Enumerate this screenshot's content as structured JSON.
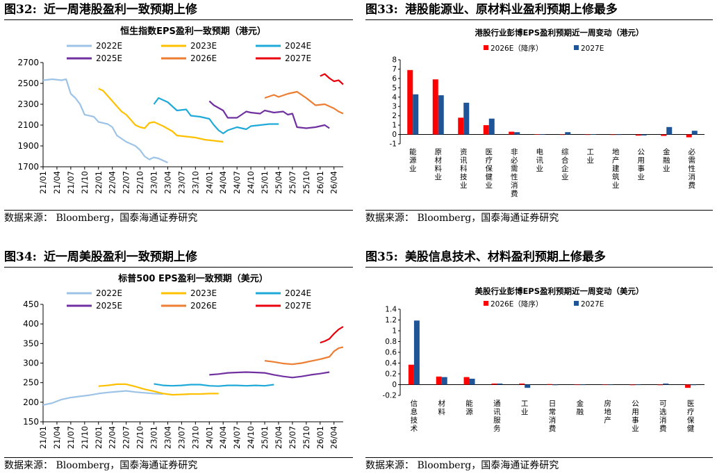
{
  "panels": [
    {
      "fig_num": "图32:",
      "fig_title": "近一周港股盈利一致预期上修",
      "source": "数据来源：  Bloomberg，国泰海通证券研究"
    },
    {
      "fig_num": "图33:",
      "fig_title": "港股能源业、原材料业盈利预期上修最多",
      "source": "数据来源：  Bloomberg，国泰海通证券研究"
    },
    {
      "fig_num": "图34:",
      "fig_title": "近一周美股盈利一致预期上修",
      "source": "数据来源：  Bloomberg，国泰海通证券研究"
    },
    {
      "fig_num": "图35:",
      "fig_title": "美股信息技术、材料盈利预期上修最多",
      "source": "数据来源：  Bloomberg，国泰海通证券研究"
    }
  ],
  "colors": {
    "2022E": "#9dc3e6",
    "2023E": "#ffc000",
    "2024E": "#1fa9d9",
    "2025E": "#7030a0",
    "2026E": "#ed7d31",
    "2027E": "#e8000d",
    "bar_2026E": "#ff0000",
    "bar_2027E": "#1f5597"
  },
  "chart_data": [
    {
      "type": "line",
      "title": "恒生指数EPS盈利一致预期（港元）",
      "ylim": [
        1700,
        2700
      ],
      "yticks": [
        "1700",
        "1900",
        "2100",
        "2300",
        "2500",
        "2700"
      ],
      "xticks": [
        "21/01",
        "21/04",
        "21/07",
        "21/10",
        "22/01",
        "22/04",
        "22/07",
        "22/10",
        "23/01",
        "23/04",
        "23/07",
        "23/10",
        "24/01",
        "24/04",
        "24/07",
        "24/10",
        "25/01",
        "25/04",
        "25/07",
        "25/10",
        "26/01",
        "26/04"
      ],
      "x_range": [
        "2021-01",
        "2026-06"
      ],
      "legend": [
        "2022E",
        "2023E",
        "2024E",
        "2025E",
        "2026E",
        "2027E"
      ],
      "series": [
        {
          "name": "2022E",
          "color_key": "2022E",
          "points": [
            [
              "2021-01",
              2530
            ],
            [
              "2021-03",
              2540
            ],
            [
              "2021-05",
              2530
            ],
            [
              "2021-06",
              2540
            ],
            [
              "2021-07",
              2400
            ],
            [
              "2021-08",
              2360
            ],
            [
              "2021-09",
              2300
            ],
            [
              "2021-10",
              2200
            ],
            [
              "2021-12",
              2180
            ],
            [
              "2022-01",
              2130
            ],
            [
              "2022-03",
              2110
            ],
            [
              "2022-04",
              2080
            ],
            [
              "2022-05",
              2000
            ],
            [
              "2022-07",
              1940
            ],
            [
              "2022-09",
              1900
            ],
            [
              "2022-10",
              1860
            ],
            [
              "2022-11",
              1800
            ],
            [
              "2022-12",
              1770
            ],
            [
              "2023-01",
              1790
            ],
            [
              "2023-02",
              1780
            ],
            [
              "2023-03",
              1760
            ],
            [
              "2023-04",
              1740
            ]
          ]
        },
        {
          "name": "2023E",
          "color_key": "2023E",
          "points": [
            [
              "2022-01",
              2450
            ],
            [
              "2022-02",
              2430
            ],
            [
              "2022-03",
              2380
            ],
            [
              "2022-04",
              2330
            ],
            [
              "2022-05",
              2280
            ],
            [
              "2022-06",
              2230
            ],
            [
              "2022-07",
              2200
            ],
            [
              "2022-08",
              2150
            ],
            [
              "2022-09",
              2100
            ],
            [
              "2022-10",
              2080
            ],
            [
              "2022-11",
              2070
            ],
            [
              "2022-12",
              2120
            ],
            [
              "2023-01",
              2130
            ],
            [
              "2023-03",
              2090
            ],
            [
              "2023-05",
              2040
            ],
            [
              "2023-06",
              2000
            ],
            [
              "2023-08",
              1990
            ],
            [
              "2023-10",
              1980
            ],
            [
              "2023-12",
              1960
            ],
            [
              "2024-02",
              1950
            ],
            [
              "2024-04",
              1940
            ]
          ]
        },
        {
          "name": "2024E",
          "color_key": "2024E",
          "points": [
            [
              "2023-01",
              2300
            ],
            [
              "2023-02",
              2360
            ],
            [
              "2023-04",
              2320
            ],
            [
              "2023-06",
              2240
            ],
            [
              "2023-08",
              2250
            ],
            [
              "2023-09",
              2190
            ],
            [
              "2023-11",
              2180
            ],
            [
              "2024-01",
              2160
            ],
            [
              "2024-02",
              2100
            ],
            [
              "2024-03",
              2050
            ],
            [
              "2024-04",
              2020
            ],
            [
              "2024-05",
              2050
            ],
            [
              "2024-07",
              2080
            ],
            [
              "2024-09",
              2060
            ],
            [
              "2024-10",
              2090
            ],
            [
              "2024-12",
              2100
            ],
            [
              "2025-02",
              2110
            ],
            [
              "2025-04",
              2110
            ]
          ]
        },
        {
          "name": "2025E",
          "color_key": "2025E",
          "points": [
            [
              "2024-01",
              2330
            ],
            [
              "2024-02",
              2290
            ],
            [
              "2024-04",
              2240
            ],
            [
              "2024-05",
              2170
            ],
            [
              "2024-07",
              2170
            ],
            [
              "2024-09",
              2230
            ],
            [
              "2024-10",
              2220
            ],
            [
              "2024-12",
              2210
            ],
            [
              "2025-01",
              2240
            ],
            [
              "2025-03",
              2220
            ],
            [
              "2025-05",
              2230
            ],
            [
              "2025-06",
              2200
            ],
            [
              "2025-07",
              2210
            ],
            [
              "2025-08",
              2080
            ],
            [
              "2025-10",
              2070
            ],
            [
              "2025-12",
              2080
            ],
            [
              "2026-02",
              2100
            ],
            [
              "2026-03",
              2070
            ]
          ]
        },
        {
          "name": "2026E",
          "color_key": "2026E",
          "points": [
            [
              "2025-01",
              2360
            ],
            [
              "2025-03",
              2390
            ],
            [
              "2025-04",
              2370
            ],
            [
              "2025-06",
              2400
            ],
            [
              "2025-08",
              2420
            ],
            [
              "2025-10",
              2360
            ],
            [
              "2025-12",
              2290
            ],
            [
              "2026-02",
              2300
            ],
            [
              "2026-04",
              2260
            ],
            [
              "2026-05",
              2230
            ],
            [
              "2026-06",
              2210
            ]
          ]
        },
        {
          "name": "2027E",
          "color_key": "2027E",
          "points": [
            [
              "2026-01",
              2570
            ],
            [
              "2026-02",
              2590
            ],
            [
              "2026-03",
              2550
            ],
            [
              "2026-04",
              2520
            ],
            [
              "2026-05",
              2530
            ],
            [
              "2026-06",
              2490
            ]
          ]
        }
      ]
    },
    {
      "type": "bar",
      "title": "港股行业彭博EPS盈利预期近一周变动（港元）",
      "ylim": [
        -1,
        8
      ],
      "yticks": [
        "-1",
        "0",
        "1",
        "2",
        "3",
        "4",
        "5",
        "6",
        "7",
        "8"
      ],
      "categories": [
        "能源业",
        "原材料业",
        "资讯科技业",
        "医疗保健业",
        "非必需性消费",
        "电讯业",
        "综合企业",
        "工业",
        "地产建筑业",
        "公用事业",
        "金融业",
        "必需性消费"
      ],
      "legend": [
        "2026E（降序）",
        "2027E"
      ],
      "series": [
        {
          "name": "2026E（降序）",
          "color_key": "bar_2026E",
          "values": [
            6.9,
            5.9,
            1.8,
            1.0,
            0.3,
            0.02,
            0.0,
            0.0,
            -0.05,
            -0.12,
            -0.15,
            -0.3
          ]
        },
        {
          "name": "2027E",
          "color_key": "bar_2027E",
          "values": [
            4.3,
            4.2,
            3.4,
            1.7,
            0.25,
            0.03,
            0.25,
            0.02,
            0.0,
            -0.1,
            0.8,
            0.4
          ]
        }
      ]
    },
    {
      "type": "line",
      "title": "标普500 EPS盈利一致预期（美元）",
      "ylim": [
        150,
        450
      ],
      "yticks": [
        "150",
        "200",
        "250",
        "300",
        "350",
        "400",
        "450"
      ],
      "xticks": [
        "21/01",
        "21/04",
        "21/07",
        "21/10",
        "22/01",
        "22/04",
        "22/07",
        "22/10",
        "23/01",
        "23/04",
        "23/07",
        "23/10",
        "24/01",
        "24/04",
        "24/07",
        "24/10",
        "25/01",
        "25/04",
        "25/07",
        "25/10",
        "26/01",
        "26/04"
      ],
      "x_range": [
        "2021-01",
        "2026-06"
      ],
      "legend": [
        "2022E",
        "2023E",
        "2024E",
        "2025E",
        "2026E",
        "2027E"
      ],
      "series": [
        {
          "name": "2022E",
          "color_key": "2022E",
          "points": [
            [
              "2021-01",
              193
            ],
            [
              "2021-03",
              198
            ],
            [
              "2021-05",
              207
            ],
            [
              "2021-07",
              212
            ],
            [
              "2021-09",
              215
            ],
            [
              "2021-11",
              218
            ],
            [
              "2022-01",
              222
            ],
            [
              "2022-03",
              225
            ],
            [
              "2022-05",
              227
            ],
            [
              "2022-07",
              229
            ],
            [
              "2022-09",
              226
            ],
            [
              "2022-11",
              224
            ],
            [
              "2023-01",
              222
            ],
            [
              "2023-03",
              221
            ]
          ]
        },
        {
          "name": "2023E",
          "color_key": "2023E",
          "points": [
            [
              "2022-01",
              241
            ],
            [
              "2022-03",
              243
            ],
            [
              "2022-05",
              246
            ],
            [
              "2022-07",
              246
            ],
            [
              "2022-09",
              240
            ],
            [
              "2022-11",
              233
            ],
            [
              "2023-01",
              228
            ],
            [
              "2023-03",
              222
            ],
            [
              "2023-05",
              219
            ],
            [
              "2023-07",
              220
            ],
            [
              "2023-09",
              221
            ],
            [
              "2023-11",
              221
            ],
            [
              "2024-01",
              222
            ],
            [
              "2024-03",
              222
            ]
          ]
        },
        {
          "name": "2024E",
          "color_key": "2024E",
          "points": [
            [
              "2023-01",
              247
            ],
            [
              "2023-03",
              243
            ],
            [
              "2023-05",
              242
            ],
            [
              "2023-07",
              243
            ],
            [
              "2023-09",
              245
            ],
            [
              "2023-11",
              245
            ],
            [
              "2024-01",
              242
            ],
            [
              "2024-03",
              241
            ],
            [
              "2024-05",
              243
            ],
            [
              "2024-07",
              243
            ],
            [
              "2024-09",
              242
            ],
            [
              "2024-11",
              243
            ],
            [
              "2025-01",
              242
            ],
            [
              "2025-03",
              245
            ]
          ]
        },
        {
          "name": "2025E",
          "color_key": "2025E",
          "points": [
            [
              "2024-01",
              270
            ],
            [
              "2024-03",
              272
            ],
            [
              "2024-05",
              275
            ],
            [
              "2024-07",
              276
            ],
            [
              "2024-09",
              277
            ],
            [
              "2024-11",
              276
            ],
            [
              "2025-01",
              275
            ],
            [
              "2025-03",
              270
            ],
            [
              "2025-05",
              266
            ],
            [
              "2025-07",
              263
            ],
            [
              "2025-09",
              266
            ],
            [
              "2025-11",
              270
            ],
            [
              "2026-01",
              273
            ],
            [
              "2026-03",
              277
            ]
          ]
        },
        {
          "name": "2026E",
          "color_key": "2026E",
          "points": [
            [
              "2025-01",
              306
            ],
            [
              "2025-03",
              303
            ],
            [
              "2025-05",
              299
            ],
            [
              "2025-07",
              297
            ],
            [
              "2025-09",
              300
            ],
            [
              "2025-11",
              305
            ],
            [
              "2026-01",
              310
            ],
            [
              "2026-03",
              316
            ],
            [
              "2026-04",
              330
            ],
            [
              "2026-05",
              338
            ],
            [
              "2026-06",
              341
            ]
          ]
        },
        {
          "name": "2027E",
          "color_key": "2027E",
          "points": [
            [
              "2026-01",
              352
            ],
            [
              "2026-02",
              356
            ],
            [
              "2026-03",
              362
            ],
            [
              "2026-04",
              375
            ],
            [
              "2026-05",
              386
            ],
            [
              "2026-06",
              393
            ]
          ]
        }
      ]
    },
    {
      "type": "bar",
      "title": "美股行业彭博EPS盈利预期近一周变动（美元）",
      "ylim": [
        -0.2,
        1.4
      ],
      "yticks": [
        "-0.2",
        "0",
        "0.2",
        "0.4",
        "0.6",
        "0.8",
        "1",
        "1.2",
        "1.4"
      ],
      "categories": [
        "信息技术",
        "材料",
        "能源",
        "通讯服务",
        "工业",
        "日常消费",
        "金融",
        "房地产",
        "公用事业",
        "可选消费",
        "医疗保健"
      ],
      "legend": [
        "2026E（降序）",
        "2027E"
      ],
      "series": [
        {
          "name": "2026E（降序）",
          "color_key": "bar_2026E",
          "values": [
            0.37,
            0.15,
            0.14,
            0.02,
            0.02,
            0.01,
            0.0,
            0.0,
            -0.01,
            -0.01,
            -0.06
          ]
        },
        {
          "name": "2027E",
          "color_key": "bar_2027E",
          "values": [
            1.19,
            0.14,
            0.11,
            0.02,
            -0.06,
            -0.01,
            0.0,
            0.0,
            0.0,
            0.02,
            -0.01
          ]
        }
      ]
    }
  ]
}
